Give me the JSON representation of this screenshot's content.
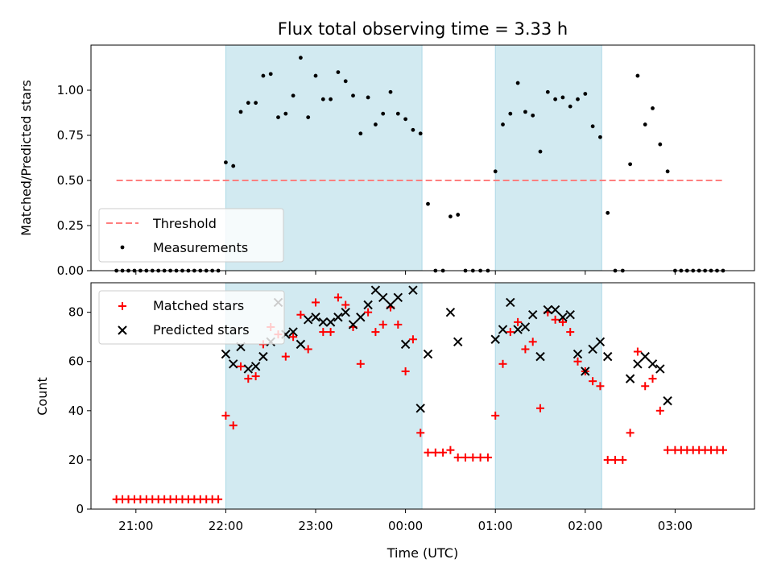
{
  "chart_data": {
    "type": "scatter",
    "title": "Flux total observing time = 3.33 h",
    "xlabel": "Time (UTC)",
    "xlim": [
      "20:30",
      "03:53"
    ],
    "xticks": [
      "21:00",
      "22:00",
      "23:00",
      "00:00",
      "01:00",
      "02:00",
      "03:00"
    ],
    "shaded_intervals": [
      [
        "22:00",
        "00:11"
      ],
      [
        "01:00",
        "02:11"
      ]
    ],
    "colors": {
      "shade": "#add8e6",
      "threshold": "#ff7f7f",
      "matched": "#ff0000",
      "predicted": "#000000",
      "measurements": "#000000"
    },
    "top": {
      "ylabel": "Matched/Predicted stars",
      "ylim": [
        0,
        1.25
      ],
      "yticks": [
        "0.00",
        "0.25",
        "0.50",
        "0.75",
        "1.00"
      ],
      "legend_position": "lower-left",
      "threshold": {
        "name": "Threshold",
        "y": 0.5,
        "x": [
          "20:47",
          "03:32"
        ]
      },
      "measurements": {
        "name": "Measurements",
        "points": [
          [
            "20:47",
            0
          ],
          [
            "20:51",
            0
          ],
          [
            "20:55",
            0
          ],
          [
            "20:59",
            0
          ],
          [
            "21:03",
            0
          ],
          [
            "21:07",
            0
          ],
          [
            "21:11",
            0
          ],
          [
            "21:15",
            0
          ],
          [
            "21:19",
            0
          ],
          [
            "21:23",
            0
          ],
          [
            "21:27",
            0
          ],
          [
            "21:31",
            0
          ],
          [
            "21:35",
            0
          ],
          [
            "21:39",
            0
          ],
          [
            "21:43",
            0
          ],
          [
            "21:47",
            0
          ],
          [
            "21:51",
            0
          ],
          [
            "21:55",
            0
          ],
          [
            "22:00",
            0.6
          ],
          [
            "22:05",
            0.58
          ],
          [
            "22:10",
            0.88
          ],
          [
            "22:15",
            0.93
          ],
          [
            "22:20",
            0.93
          ],
          [
            "22:25",
            1.08
          ],
          [
            "22:30",
            1.09
          ],
          [
            "22:35",
            0.85
          ],
          [
            "22:40",
            0.87
          ],
          [
            "22:45",
            0.97
          ],
          [
            "22:50",
            1.18
          ],
          [
            "22:55",
            0.85
          ],
          [
            "23:00",
            1.08
          ],
          [
            "23:05",
            0.95
          ],
          [
            "23:10",
            0.95
          ],
          [
            "23:15",
            1.1
          ],
          [
            "23:20",
            1.05
          ],
          [
            "23:25",
            0.97
          ],
          [
            "23:30",
            0.76
          ],
          [
            "23:35",
            0.96
          ],
          [
            "23:40",
            0.81
          ],
          [
            "23:45",
            0.87
          ],
          [
            "23:50",
            0.99
          ],
          [
            "23:55",
            0.87
          ],
          [
            "00:00",
            0.84
          ],
          [
            "00:05",
            0.78
          ],
          [
            "00:10",
            0.76
          ],
          [
            "00:15",
            0.37
          ],
          [
            "00:20",
            0
          ],
          [
            "00:25",
            0
          ],
          [
            "00:30",
            0.3
          ],
          [
            "00:35",
            0.31
          ],
          [
            "00:40",
            0
          ],
          [
            "00:45",
            0
          ],
          [
            "00:50",
            0
          ],
          [
            "00:55",
            0
          ],
          [
            "01:00",
            0.55
          ],
          [
            "01:05",
            0.81
          ],
          [
            "01:10",
            0.87
          ],
          [
            "01:15",
            1.04
          ],
          [
            "01:20",
            0.88
          ],
          [
            "01:25",
            0.86
          ],
          [
            "01:30",
            0.66
          ],
          [
            "01:35",
            0.99
          ],
          [
            "01:40",
            0.95
          ],
          [
            "01:45",
            0.96
          ],
          [
            "01:50",
            0.91
          ],
          [
            "01:55",
            0.95
          ],
          [
            "02:00",
            0.98
          ],
          [
            "02:05",
            0.8
          ],
          [
            "02:10",
            0.74
          ],
          [
            "02:15",
            0.32
          ],
          [
            "02:20",
            0
          ],
          [
            "02:25",
            0
          ],
          [
            "02:30",
            0.59
          ],
          [
            "02:35",
            1.08
          ],
          [
            "02:40",
            0.81
          ],
          [
            "02:45",
            0.9
          ],
          [
            "02:50",
            0.7
          ],
          [
            "02:55",
            0.55
          ],
          [
            "03:00",
            0
          ],
          [
            "03:04",
            0
          ],
          [
            "03:08",
            0
          ],
          [
            "03:12",
            0
          ],
          [
            "03:16",
            0
          ],
          [
            "03:20",
            0
          ],
          [
            "03:24",
            0
          ],
          [
            "03:28",
            0
          ],
          [
            "03:32",
            0
          ]
        ]
      }
    },
    "bottom": {
      "ylabel": "Count",
      "ylim": [
        0,
        92
      ],
      "yticks": [
        "0",
        "20",
        "40",
        "60",
        "80"
      ],
      "legend_position": "upper-left",
      "series": [
        {
          "name": "Matched stars",
          "marker": "+",
          "points": [
            [
              "20:47",
              4
            ],
            [
              "20:51",
              4
            ],
            [
              "20:55",
              4
            ],
            [
              "20:59",
              4
            ],
            [
              "21:03",
              4
            ],
            [
              "21:07",
              4
            ],
            [
              "21:11",
              4
            ],
            [
              "21:15",
              4
            ],
            [
              "21:19",
              4
            ],
            [
              "21:23",
              4
            ],
            [
              "21:27",
              4
            ],
            [
              "21:31",
              4
            ],
            [
              "21:35",
              4
            ],
            [
              "21:39",
              4
            ],
            [
              "21:43",
              4
            ],
            [
              "21:47",
              4
            ],
            [
              "21:51",
              4
            ],
            [
              "21:55",
              4
            ],
            [
              "22:00",
              38
            ],
            [
              "22:05",
              34
            ],
            [
              "22:10",
              58
            ],
            [
              "22:15",
              53
            ],
            [
              "22:20",
              54
            ],
            [
              "22:25",
              67
            ],
            [
              "22:30",
              74
            ],
            [
              "22:35",
              71
            ],
            [
              "22:40",
              62
            ],
            [
              "22:45",
              70
            ],
            [
              "22:50",
              79
            ],
            [
              "22:55",
              65
            ],
            [
              "23:00",
              84
            ],
            [
              "23:05",
              72
            ],
            [
              "23:10",
              72
            ],
            [
              "23:15",
              86
            ],
            [
              "23:20",
              83
            ],
            [
              "23:25",
              74
            ],
            [
              "23:30",
              59
            ],
            [
              "23:35",
              80
            ],
            [
              "23:40",
              72
            ],
            [
              "23:45",
              75
            ],
            [
              "23:50",
              82
            ],
            [
              "23:55",
              75
            ],
            [
              "00:00",
              56
            ],
            [
              "00:05",
              69
            ],
            [
              "00:10",
              31
            ],
            [
              "00:15",
              23
            ],
            [
              "00:20",
              23
            ],
            [
              "00:25",
              23
            ],
            [
              "00:30",
              24
            ],
            [
              "00:35",
              21
            ],
            [
              "00:40",
              21
            ],
            [
              "00:45",
              21
            ],
            [
              "00:50",
              21
            ],
            [
              "00:55",
              21
            ],
            [
              "01:00",
              38
            ],
            [
              "01:05",
              59
            ],
            [
              "01:10",
              72
            ],
            [
              "01:15",
              76
            ],
            [
              "01:20",
              65
            ],
            [
              "01:25",
              68
            ],
            [
              "01:30",
              41
            ],
            [
              "01:35",
              80
            ],
            [
              "01:40",
              77
            ],
            [
              "01:45",
              76
            ],
            [
              "01:50",
              72
            ],
            [
              "01:55",
              60
            ],
            [
              "02:00",
              56
            ],
            [
              "02:05",
              52
            ],
            [
              "02:10",
              50
            ],
            [
              "02:15",
              20
            ],
            [
              "02:20",
              20
            ],
            [
              "02:25",
              20
            ],
            [
              "02:30",
              31
            ],
            [
              "02:35",
              64
            ],
            [
              "02:40",
              50
            ],
            [
              "02:45",
              53
            ],
            [
              "02:50",
              40
            ],
            [
              "02:55",
              24
            ],
            [
              "03:00",
              24
            ],
            [
              "03:04",
              24
            ],
            [
              "03:08",
              24
            ],
            [
              "03:12",
              24
            ],
            [
              "03:16",
              24
            ],
            [
              "03:20",
              24
            ],
            [
              "03:24",
              24
            ],
            [
              "03:28",
              24
            ],
            [
              "03:32",
              24
            ]
          ]
        },
        {
          "name": "Predicted stars",
          "marker": "x",
          "points": [
            [
              "22:00",
              63
            ],
            [
              "22:05",
              59
            ],
            [
              "22:10",
              66
            ],
            [
              "22:15",
              57
            ],
            [
              "22:20",
              58
            ],
            [
              "22:25",
              62
            ],
            [
              "22:30",
              68
            ],
            [
              "22:35",
              84
            ],
            [
              "22:40",
              71
            ],
            [
              "22:45",
              72
            ],
            [
              "22:50",
              67
            ],
            [
              "22:55",
              77
            ],
            [
              "23:00",
              78
            ],
            [
              "23:05",
              76
            ],
            [
              "23:10",
              76
            ],
            [
              "23:15",
              78
            ],
            [
              "23:20",
              80
            ],
            [
              "23:25",
              75
            ],
            [
              "23:30",
              78
            ],
            [
              "23:35",
              83
            ],
            [
              "23:40",
              89
            ],
            [
              "23:45",
              86
            ],
            [
              "23:50",
              83
            ],
            [
              "23:55",
              86
            ],
            [
              "00:00",
              67
            ],
            [
              "00:05",
              89
            ],
            [
              "00:10",
              41
            ],
            [
              "00:15",
              63
            ],
            [
              "00:30",
              80
            ],
            [
              "00:35",
              68
            ],
            [
              "01:00",
              69
            ],
            [
              "01:05",
              73
            ],
            [
              "01:10",
              84
            ],
            [
              "01:15",
              73
            ],
            [
              "01:20",
              74
            ],
            [
              "01:25",
              79
            ],
            [
              "01:30",
              62
            ],
            [
              "01:35",
              81
            ],
            [
              "01:40",
              81
            ],
            [
              "01:45",
              78
            ],
            [
              "01:50",
              79
            ],
            [
              "01:55",
              63
            ],
            [
              "02:00",
              56
            ],
            [
              "02:05",
              65
            ],
            [
              "02:10",
              68
            ],
            [
              "02:15",
              62
            ],
            [
              "02:30",
              53
            ],
            [
              "02:35",
              59
            ],
            [
              "02:40",
              62
            ],
            [
              "02:45",
              59
            ],
            [
              "02:50",
              57
            ],
            [
              "02:55",
              44
            ]
          ]
        }
      ]
    }
  }
}
